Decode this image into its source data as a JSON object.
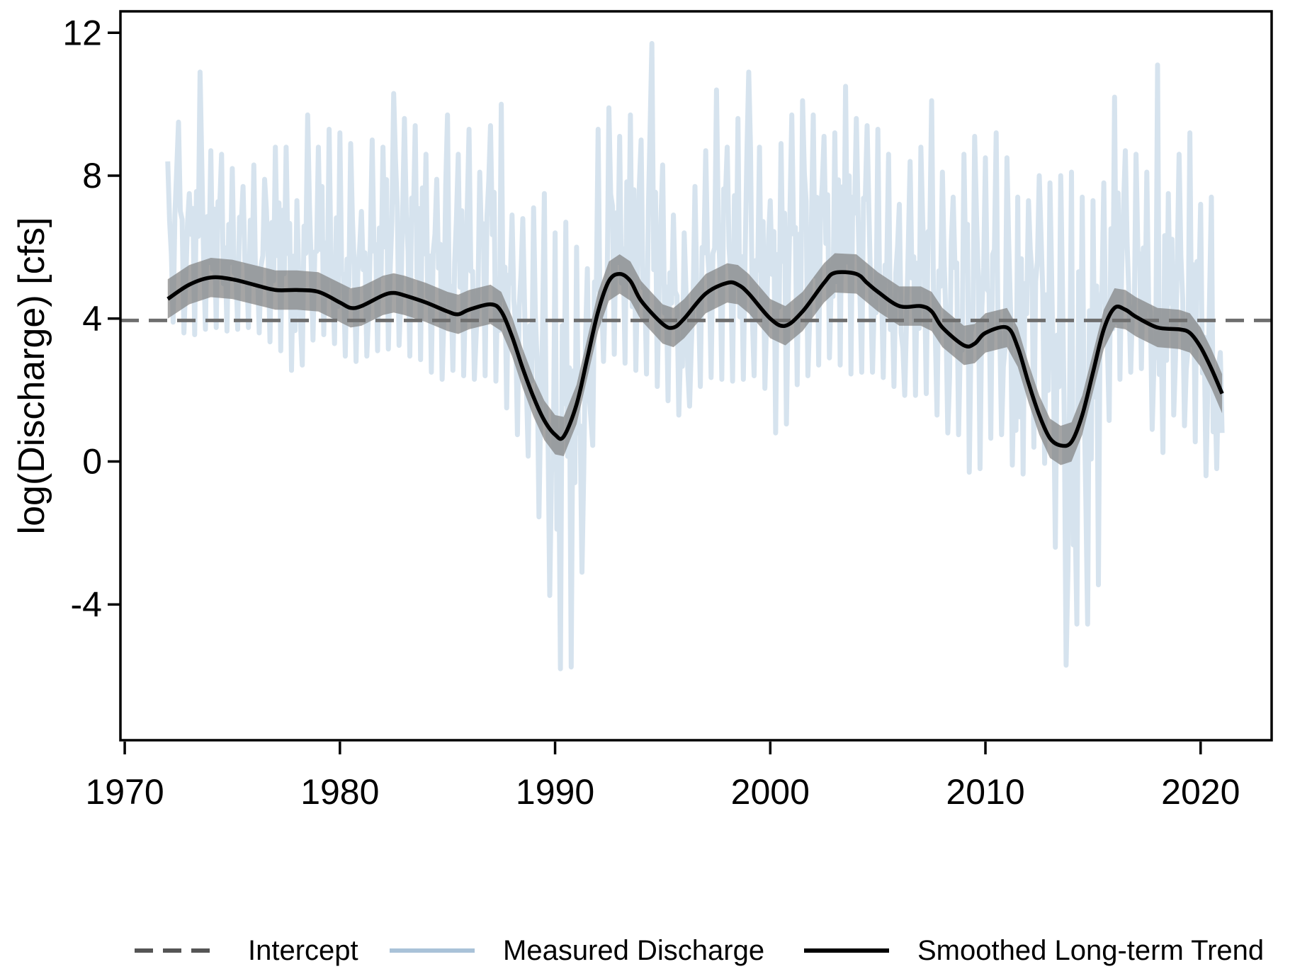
{
  "chart_data": {
    "type": "line",
    "title": "",
    "xlabel": "",
    "ylabel": "log(Discharge) [cfs]",
    "xlim": [
      1969.8,
      2023.3
    ],
    "ylim": [
      -7.8,
      12.6
    ],
    "xticks": [
      1970,
      1980,
      1990,
      2000,
      2010,
      2020
    ],
    "xtick_labels": [
      "1970",
      "1980",
      "1990",
      "2000",
      "2010",
      "2020"
    ],
    "yticks": [
      12,
      8,
      4,
      0,
      -4
    ],
    "ytick_labels": [
      "12",
      "8",
      "4",
      "0",
      "-4"
    ],
    "grid": false,
    "legend_position": "bottom",
    "intercept": {
      "name": "Intercept",
      "value": 3.95,
      "color": "#6e6e6e",
      "style": "dashed"
    },
    "series": [
      {
        "name": "Measured Discharge",
        "color": "#b4cce0",
        "style": "solid",
        "description_values": "approximate monthly envelope (upper / lower) read from figure",
        "x": [
          1972.0,
          1972.5,
          1973.0,
          1973.5,
          1974.0,
          1974.5,
          1975.0,
          1975.5,
          1976.0,
          1976.5,
          1977.0,
          1977.5,
          1978.0,
          1978.5,
          1979.0,
          1979.5,
          1980.0,
          1980.5,
          1981.0,
          1981.5,
          1982.0,
          1982.5,
          1983.0,
          1983.5,
          1984.0,
          1984.5,
          1985.0,
          1985.5,
          1986.0,
          1986.5,
          1987.0,
          1987.5,
          1988.0,
          1988.5,
          1989.0,
          1989.5,
          1990.0,
          1990.5,
          1991.0,
          1991.5,
          1992.0,
          1992.5,
          1993.0,
          1993.5,
          1994.0,
          1994.5,
          1995.0,
          1995.5,
          1996.0,
          1996.5,
          1997.0,
          1997.5,
          1998.0,
          1998.5,
          1999.0,
          1999.5,
          2000.0,
          2000.5,
          2001.0,
          2001.5,
          2002.0,
          2002.5,
          2003.0,
          2003.5,
          2004.0,
          2004.5,
          2005.0,
          2005.5,
          2006.0,
          2006.5,
          2007.0,
          2007.5,
          2008.0,
          2008.5,
          2009.0,
          2009.5,
          2010.0,
          2010.5,
          2011.0,
          2011.5,
          2012.0,
          2012.5,
          2013.0,
          2013.5,
          2014.0,
          2014.5,
          2015.0,
          2015.5,
          2016.0,
          2016.5,
          2017.0,
          2017.5,
          2018.0,
          2018.5,
          2019.0,
          2019.5,
          2020.0,
          2020.5,
          2021.0
        ],
        "upper": [
          8.4,
          9.5,
          7.5,
          10.9,
          8.7,
          8.6,
          8.2,
          7.7,
          8.3,
          7.9,
          8.8,
          8.8,
          7.3,
          9.7,
          8.8,
          9.3,
          9.2,
          8.9,
          7.0,
          9.0,
          8.8,
          10.3,
          9.6,
          9.4,
          8.6,
          7.9,
          9.7,
          8.6,
          9.3,
          8.1,
          9.4,
          10.0,
          6.9,
          6.8,
          7.1,
          7.5,
          6.4,
          6.7,
          6.0,
          5.4,
          9.3,
          9.9,
          9.1,
          9.7,
          9.0,
          11.7,
          8.3,
          6.9,
          6.4,
          7.7,
          8.7,
          10.4,
          8.8,
          9.6,
          10.9,
          8.8,
          7.3,
          8.9,
          9.7,
          10.1,
          9.7,
          9.1,
          9.2,
          10.5,
          9.6,
          9.4,
          9.3,
          8.6,
          7.2,
          8.4,
          8.8,
          10.1,
          8.1,
          7.4,
          8.6,
          9.1,
          8.5,
          9.2,
          8.5,
          7.4,
          7.3,
          8.0,
          7.8,
          8.0,
          8.1,
          7.4,
          7.3,
          7.8,
          10.2,
          8.7,
          8.6,
          8.1,
          11.1,
          7.5,
          8.6,
          9.2,
          7.2,
          7.4,
          6.3
        ],
        "lower": [
          4.1,
          3.7,
          3.5,
          3.6,
          3.8,
          3.7,
          3.6,
          3.8,
          3.7,
          3.5,
          3.2,
          3.0,
          2.1,
          3.3,
          3.5,
          3.6,
          3.0,
          2.9,
          2.7,
          3.2,
          3.0,
          3.3,
          3.2,
          2.7,
          3.0,
          2.0,
          2.6,
          2.5,
          2.3,
          2.3,
          2.5,
          2.0,
          1.0,
          0.5,
          -0.2,
          -2.9,
          -4.6,
          -7.0,
          -4.5,
          -1.7,
          2.6,
          3.0,
          3.0,
          2.5,
          2.6,
          2.3,
          1.9,
          1.5,
          1.1,
          2.0,
          2.2,
          2.5,
          2.1,
          2.4,
          2.2,
          2.6,
          1.5,
          0.1,
          2.0,
          2.3,
          2.5,
          2.9,
          2.9,
          2.5,
          2.4,
          2.6,
          2.4,
          2.3,
          1.9,
          1.8,
          1.9,
          1.9,
          0.7,
          0.9,
          0.6,
          -1.2,
          0.8,
          0.5,
          1.0,
          -1.2,
          0.5,
          0.3,
          -0.4,
          -4.4,
          -7.0,
          -2.1,
          -7.0,
          0.1,
          2.2,
          2.4,
          2.6,
          2.6,
          -0.8,
          1.3,
          1.3,
          0.7,
          0.4,
          -1.2,
          0.8
        ]
      },
      {
        "name": "Smoothed Long-term Trend",
        "color": "#000000",
        "style": "solid",
        "band_color": "#7f7f7f",
        "band_halfwidth": 0.55,
        "x": [
          1972.0,
          1973.0,
          1974.0,
          1975.0,
          1976.0,
          1977.0,
          1978.0,
          1979.0,
          1980.0,
          1980.5,
          1981.0,
          1982.0,
          1982.5,
          1983.0,
          1984.0,
          1985.0,
          1985.5,
          1986.0,
          1987.0,
          1987.5,
          1988.0,
          1988.5,
          1989.0,
          1989.5,
          1990.0,
          1990.4,
          1991.0,
          1991.5,
          1992.0,
          1992.5,
          1993.0,
          1993.5,
          1994.0,
          1995.0,
          1995.5,
          1996.0,
          1997.0,
          1998.0,
          1998.5,
          1999.0,
          2000.0,
          2000.7,
          2001.5,
          2002.5,
          2003.0,
          2004.0,
          2004.5,
          2005.0,
          2006.0,
          2007.0,
          2007.5,
          2008.0,
          2009.0,
          2009.5,
          2010.0,
          2011.0,
          2011.5,
          2012.0,
          2012.5,
          2013.0,
          2013.5,
          2014.0,
          2014.5,
          2015.0,
          2015.5,
          2016.0,
          2016.5,
          2017.0,
          2018.0,
          2019.0,
          2019.5,
          2020.0,
          2020.5,
          2021.0
        ],
        "y": [
          4.55,
          4.95,
          5.15,
          5.1,
          4.95,
          4.8,
          4.8,
          4.75,
          4.45,
          4.3,
          4.35,
          4.65,
          4.72,
          4.65,
          4.45,
          4.2,
          4.12,
          4.25,
          4.4,
          4.2,
          3.5,
          2.6,
          1.8,
          1.15,
          0.75,
          0.7,
          1.6,
          2.9,
          4.2,
          5.05,
          5.25,
          5.05,
          4.5,
          3.85,
          3.75,
          4.0,
          4.7,
          5.0,
          4.95,
          4.7,
          4.0,
          3.8,
          4.2,
          5.0,
          5.28,
          5.25,
          5.0,
          4.75,
          4.35,
          4.35,
          4.2,
          3.75,
          3.25,
          3.3,
          3.6,
          3.75,
          3.2,
          2.2,
          1.3,
          0.65,
          0.45,
          0.55,
          1.3,
          2.5,
          3.7,
          4.3,
          4.25,
          4.05,
          3.75,
          3.7,
          3.6,
          3.2,
          2.6,
          1.9
        ]
      }
    ],
    "legend": [
      {
        "name": "Intercept",
        "style": "dashed",
        "color": "#555555"
      },
      {
        "name": "Measured Discharge",
        "style": "solid",
        "color": "#a9c2d8"
      },
      {
        "name": "Smoothed Long-term Trend",
        "style": "solid",
        "color": "#000000"
      }
    ]
  }
}
